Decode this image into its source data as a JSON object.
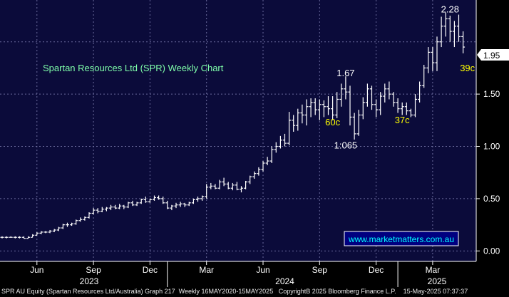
{
  "chart_data": {
    "type": "ohlc",
    "title": "Spartan Resources Ltd (SPR) Weekly Chart",
    "watermark": "www.marketmatters.com.au",
    "footer": "SPR AU Equity (Spartan Resources Ltd/Australia) Graph 217  Weekly 16MAY2020-15MAY2025   CopyrightB 2025 Bloomberg Finance L.P.    15-May-2025 07:37:37",
    "ylim": [
      -0.1,
      2.4
    ],
    "y_ticks": [
      "0.00",
      "0.50",
      "1.00",
      "1.50"
    ],
    "y_tick_values": [
      0.0,
      0.5,
      1.0,
      1.5
    ],
    "hidden_tick_value": 2.0,
    "last_price_label": "1.95",
    "last_price": 1.95,
    "x_month_labels": [
      "Jun",
      "Sep",
      "Dec",
      "Mar",
      "Jun",
      "Sep",
      "Dec",
      "Mar"
    ],
    "x_month_weeks": [
      8,
      21,
      34,
      47,
      60,
      73,
      86,
      99
    ],
    "x_year_labels": [
      "2023",
      "2024",
      "2025"
    ],
    "x_year_weeks": [
      20,
      65,
      100
    ],
    "year_separator_weeks": [
      38,
      91
    ],
    "annotations": [
      {
        "text": "2.28",
        "week": 103,
        "price": 2.28,
        "color": "#ffffff"
      },
      {
        "text": "1.67",
        "week": 79,
        "price": 1.67,
        "color": "#ffffff"
      },
      {
        "text": "60c",
        "week": 76,
        "price": 1.2,
        "color": "#ffff00"
      },
      {
        "text": "1:065",
        "week": 79,
        "price": 0.98,
        "color": "#ffffff"
      },
      {
        "text": "37c",
        "week": 92,
        "price": 1.22,
        "color": "#ffff00"
      },
      {
        "text": "39c",
        "week": 107,
        "price": 1.72,
        "color": "#ffff00"
      }
    ],
    "colors": {
      "background": "#000000",
      "plot": "#0b0b3a",
      "grid": "#6a6a9c",
      "bars": "#ffffff",
      "accent": "#ffff00",
      "watermark_bg": "#000080",
      "watermark_text": "#00ffff",
      "title": "#7fffaa"
    },
    "bars": [
      {
        "w": 0,
        "o": 0.13,
        "h": 0.14,
        "l": 0.12,
        "c": 0.13
      },
      {
        "w": 1,
        "o": 0.13,
        "h": 0.14,
        "l": 0.12,
        "c": 0.13
      },
      {
        "w": 2,
        "o": 0.13,
        "h": 0.14,
        "l": 0.13,
        "c": 0.13
      },
      {
        "w": 3,
        "o": 0.13,
        "h": 0.14,
        "l": 0.12,
        "c": 0.13
      },
      {
        "w": 4,
        "o": 0.13,
        "h": 0.14,
        "l": 0.12,
        "c": 0.13
      },
      {
        "w": 5,
        "o": 0.13,
        "h": 0.14,
        "l": 0.12,
        "c": 0.12
      },
      {
        "w": 6,
        "o": 0.12,
        "h": 0.14,
        "l": 0.12,
        "c": 0.13
      },
      {
        "w": 7,
        "o": 0.13,
        "h": 0.16,
        "l": 0.13,
        "c": 0.15
      },
      {
        "w": 8,
        "o": 0.15,
        "h": 0.18,
        "l": 0.15,
        "c": 0.17
      },
      {
        "w": 9,
        "o": 0.17,
        "h": 0.19,
        "l": 0.16,
        "c": 0.18
      },
      {
        "w": 10,
        "o": 0.18,
        "h": 0.19,
        "l": 0.17,
        "c": 0.18
      },
      {
        "w": 11,
        "o": 0.18,
        "h": 0.2,
        "l": 0.17,
        "c": 0.19
      },
      {
        "w": 12,
        "o": 0.19,
        "h": 0.21,
        "l": 0.18,
        "c": 0.2
      },
      {
        "w": 13,
        "o": 0.2,
        "h": 0.23,
        "l": 0.19,
        "c": 0.22
      },
      {
        "w": 14,
        "o": 0.22,
        "h": 0.26,
        "l": 0.21,
        "c": 0.25
      },
      {
        "w": 15,
        "o": 0.25,
        "h": 0.27,
        "l": 0.23,
        "c": 0.25
      },
      {
        "w": 16,
        "o": 0.25,
        "h": 0.27,
        "l": 0.24,
        "c": 0.26
      },
      {
        "w": 17,
        "o": 0.26,
        "h": 0.3,
        "l": 0.25,
        "c": 0.29
      },
      {
        "w": 18,
        "o": 0.29,
        "h": 0.32,
        "l": 0.28,
        "c": 0.3
      },
      {
        "w": 19,
        "o": 0.3,
        "h": 0.33,
        "l": 0.29,
        "c": 0.32
      },
      {
        "w": 20,
        "o": 0.32,
        "h": 0.37,
        "l": 0.31,
        "c": 0.36
      },
      {
        "w": 21,
        "o": 0.36,
        "h": 0.41,
        "l": 0.35,
        "c": 0.39
      },
      {
        "w": 22,
        "o": 0.39,
        "h": 0.41,
        "l": 0.36,
        "c": 0.38
      },
      {
        "w": 23,
        "o": 0.38,
        "h": 0.42,
        "l": 0.37,
        "c": 0.4
      },
      {
        "w": 24,
        "o": 0.4,
        "h": 0.42,
        "l": 0.38,
        "c": 0.41
      },
      {
        "w": 25,
        "o": 0.41,
        "h": 0.44,
        "l": 0.39,
        "c": 0.42
      },
      {
        "w": 26,
        "o": 0.42,
        "h": 0.44,
        "l": 0.4,
        "c": 0.41
      },
      {
        "w": 27,
        "o": 0.41,
        "h": 0.45,
        "l": 0.4,
        "c": 0.43
      },
      {
        "w": 28,
        "o": 0.43,
        "h": 0.44,
        "l": 0.4,
        "c": 0.42
      },
      {
        "w": 29,
        "o": 0.42,
        "h": 0.47,
        "l": 0.41,
        "c": 0.46
      },
      {
        "w": 30,
        "o": 0.46,
        "h": 0.48,
        "l": 0.43,
        "c": 0.44
      },
      {
        "w": 31,
        "o": 0.44,
        "h": 0.47,
        "l": 0.43,
        "c": 0.46
      },
      {
        "w": 32,
        "o": 0.46,
        "h": 0.5,
        "l": 0.45,
        "c": 0.49
      },
      {
        "w": 33,
        "o": 0.49,
        "h": 0.52,
        "l": 0.46,
        "c": 0.47
      },
      {
        "w": 34,
        "o": 0.47,
        "h": 0.5,
        "l": 0.46,
        "c": 0.49
      },
      {
        "w": 35,
        "o": 0.49,
        "h": 0.53,
        "l": 0.48,
        "c": 0.51
      },
      {
        "w": 36,
        "o": 0.51,
        "h": 0.53,
        "l": 0.49,
        "c": 0.5
      },
      {
        "w": 37,
        "o": 0.5,
        "h": 0.52,
        "l": 0.45,
        "c": 0.46
      },
      {
        "w": 38,
        "o": 0.46,
        "h": 0.48,
        "l": 0.4,
        "c": 0.41
      },
      {
        "w": 39,
        "o": 0.41,
        "h": 0.44,
        "l": 0.39,
        "c": 0.43
      },
      {
        "w": 40,
        "o": 0.43,
        "h": 0.46,
        "l": 0.41,
        "c": 0.44
      },
      {
        "w": 41,
        "o": 0.44,
        "h": 0.47,
        "l": 0.42,
        "c": 0.45
      },
      {
        "w": 42,
        "o": 0.45,
        "h": 0.46,
        "l": 0.42,
        "c": 0.44
      },
      {
        "w": 43,
        "o": 0.44,
        "h": 0.47,
        "l": 0.43,
        "c": 0.46
      },
      {
        "w": 44,
        "o": 0.46,
        "h": 0.5,
        "l": 0.45,
        "c": 0.49
      },
      {
        "w": 45,
        "o": 0.49,
        "h": 0.52,
        "l": 0.47,
        "c": 0.5
      },
      {
        "w": 46,
        "o": 0.5,
        "h": 0.53,
        "l": 0.48,
        "c": 0.52
      },
      {
        "w": 47,
        "o": 0.52,
        "h": 0.64,
        "l": 0.5,
        "c": 0.61
      },
      {
        "w": 48,
        "o": 0.61,
        "h": 0.65,
        "l": 0.59,
        "c": 0.62
      },
      {
        "w": 49,
        "o": 0.62,
        "h": 0.64,
        "l": 0.59,
        "c": 0.6
      },
      {
        "w": 50,
        "o": 0.6,
        "h": 0.68,
        "l": 0.59,
        "c": 0.66
      },
      {
        "w": 51,
        "o": 0.66,
        "h": 0.7,
        "l": 0.62,
        "c": 0.64
      },
      {
        "w": 52,
        "o": 0.64,
        "h": 0.66,
        "l": 0.59,
        "c": 0.6
      },
      {
        "w": 53,
        "o": 0.6,
        "h": 0.65,
        "l": 0.58,
        "c": 0.63
      },
      {
        "w": 54,
        "o": 0.63,
        "h": 0.66,
        "l": 0.58,
        "c": 0.59
      },
      {
        "w": 55,
        "o": 0.59,
        "h": 0.62,
        "l": 0.56,
        "c": 0.6
      },
      {
        "w": 56,
        "o": 0.6,
        "h": 0.67,
        "l": 0.59,
        "c": 0.66
      },
      {
        "w": 57,
        "o": 0.66,
        "h": 0.72,
        "l": 0.64,
        "c": 0.71
      },
      {
        "w": 58,
        "o": 0.71,
        "h": 0.76,
        "l": 0.69,
        "c": 0.74
      },
      {
        "w": 59,
        "o": 0.74,
        "h": 0.8,
        "l": 0.72,
        "c": 0.78
      },
      {
        "w": 60,
        "o": 0.78,
        "h": 0.86,
        "l": 0.76,
        "c": 0.84
      },
      {
        "w": 61,
        "o": 0.84,
        "h": 0.9,
        "l": 0.82,
        "c": 0.86
      },
      {
        "w": 62,
        "o": 0.86,
        "h": 1.0,
        "l": 0.84,
        "c": 0.97
      },
      {
        "w": 63,
        "o": 0.97,
        "h": 1.04,
        "l": 0.94,
        "c": 1.0
      },
      {
        "w": 64,
        "o": 1.0,
        "h": 1.1,
        "l": 0.98,
        "c": 1.06
      },
      {
        "w": 65,
        "o": 1.06,
        "h": 1.12,
        "l": 1.0,
        "c": 1.03
      },
      {
        "w": 66,
        "o": 1.03,
        "h": 1.33,
        "l": 1.01,
        "c": 1.25
      },
      {
        "w": 67,
        "o": 1.25,
        "h": 1.3,
        "l": 1.14,
        "c": 1.2
      },
      {
        "w": 68,
        "o": 1.2,
        "h": 1.36,
        "l": 1.15,
        "c": 1.32
      },
      {
        "w": 69,
        "o": 1.32,
        "h": 1.4,
        "l": 1.22,
        "c": 1.3
      },
      {
        "w": 70,
        "o": 1.3,
        "h": 1.45,
        "l": 1.2,
        "c": 1.38
      },
      {
        "w": 71,
        "o": 1.38,
        "h": 1.46,
        "l": 1.28,
        "c": 1.42
      },
      {
        "w": 72,
        "o": 1.42,
        "h": 1.46,
        "l": 1.3,
        "c": 1.35
      },
      {
        "w": 73,
        "o": 1.35,
        "h": 1.45,
        "l": 1.25,
        "c": 1.4
      },
      {
        "w": 74,
        "o": 1.4,
        "h": 1.44,
        "l": 1.28,
        "c": 1.38
      },
      {
        "w": 75,
        "o": 1.38,
        "h": 1.48,
        "l": 1.3,
        "c": 1.36
      },
      {
        "w": 76,
        "o": 1.36,
        "h": 1.48,
        "l": 1.25,
        "c": 1.3
      },
      {
        "w": 77,
        "o": 1.3,
        "h": 1.52,
        "l": 1.27,
        "c": 1.45
      },
      {
        "w": 78,
        "o": 1.45,
        "h": 1.6,
        "l": 1.38,
        "c": 1.55
      },
      {
        "w": 79,
        "o": 1.55,
        "h": 1.67,
        "l": 1.45,
        "c": 1.52
      },
      {
        "w": 80,
        "o": 1.52,
        "h": 1.58,
        "l": 1.2,
        "c": 1.28
      },
      {
        "w": 81,
        "o": 1.28,
        "h": 1.32,
        "l": 1.065,
        "c": 1.12
      },
      {
        "w": 82,
        "o": 1.12,
        "h": 1.35,
        "l": 1.1,
        "c": 1.3
      },
      {
        "w": 83,
        "o": 1.3,
        "h": 1.47,
        "l": 1.26,
        "c": 1.42
      },
      {
        "w": 84,
        "o": 1.42,
        "h": 1.6,
        "l": 1.38,
        "c": 1.55
      },
      {
        "w": 85,
        "o": 1.55,
        "h": 1.58,
        "l": 1.35,
        "c": 1.4
      },
      {
        "w": 86,
        "o": 1.4,
        "h": 1.45,
        "l": 1.28,
        "c": 1.35
      },
      {
        "w": 87,
        "o": 1.35,
        "h": 1.52,
        "l": 1.3,
        "c": 1.48
      },
      {
        "w": 88,
        "o": 1.48,
        "h": 1.6,
        "l": 1.42,
        "c": 1.55
      },
      {
        "w": 89,
        "o": 1.55,
        "h": 1.62,
        "l": 1.45,
        "c": 1.5
      },
      {
        "w": 90,
        "o": 1.5,
        "h": 1.52,
        "l": 1.38,
        "c": 1.42
      },
      {
        "w": 91,
        "o": 1.42,
        "h": 1.46,
        "l": 1.32,
        "c": 1.36
      },
      {
        "w": 92,
        "o": 1.36,
        "h": 1.42,
        "l": 1.3,
        "c": 1.38
      },
      {
        "w": 93,
        "o": 1.38,
        "h": 1.42,
        "l": 1.3,
        "c": 1.34
      },
      {
        "w": 94,
        "o": 1.34,
        "h": 1.36,
        "l": 1.28,
        "c": 1.3
      },
      {
        "w": 95,
        "o": 1.3,
        "h": 1.5,
        "l": 1.28,
        "c": 1.45
      },
      {
        "w": 96,
        "o": 1.45,
        "h": 1.62,
        "l": 1.42,
        "c": 1.58
      },
      {
        "w": 97,
        "o": 1.58,
        "h": 1.78,
        "l": 1.56,
        "c": 1.75
      },
      {
        "w": 98,
        "o": 1.75,
        "h": 1.95,
        "l": 1.7,
        "c": 1.9
      },
      {
        "w": 99,
        "o": 1.9,
        "h": 1.95,
        "l": 1.72,
        "c": 1.8
      },
      {
        "w": 100,
        "o": 1.8,
        "h": 2.05,
        "l": 1.72,
        "c": 2.0
      },
      {
        "w": 101,
        "o": 2.0,
        "h": 2.24,
        "l": 1.95,
        "c": 2.15
      },
      {
        "w": 102,
        "o": 2.15,
        "h": 2.28,
        "l": 2.05,
        "c": 2.22
      },
      {
        "w": 103,
        "o": 2.22,
        "h": 2.25,
        "l": 2.0,
        "c": 2.1
      },
      {
        "w": 104,
        "o": 2.1,
        "h": 2.2,
        "l": 1.95,
        "c": 2.15
      },
      {
        "w": 105,
        "o": 2.15,
        "h": 2.26,
        "l": 2.0,
        "c": 2.05
      },
      {
        "w": 106,
        "o": 2.05,
        "h": 2.1,
        "l": 1.89,
        "c": 1.95
      }
    ]
  }
}
